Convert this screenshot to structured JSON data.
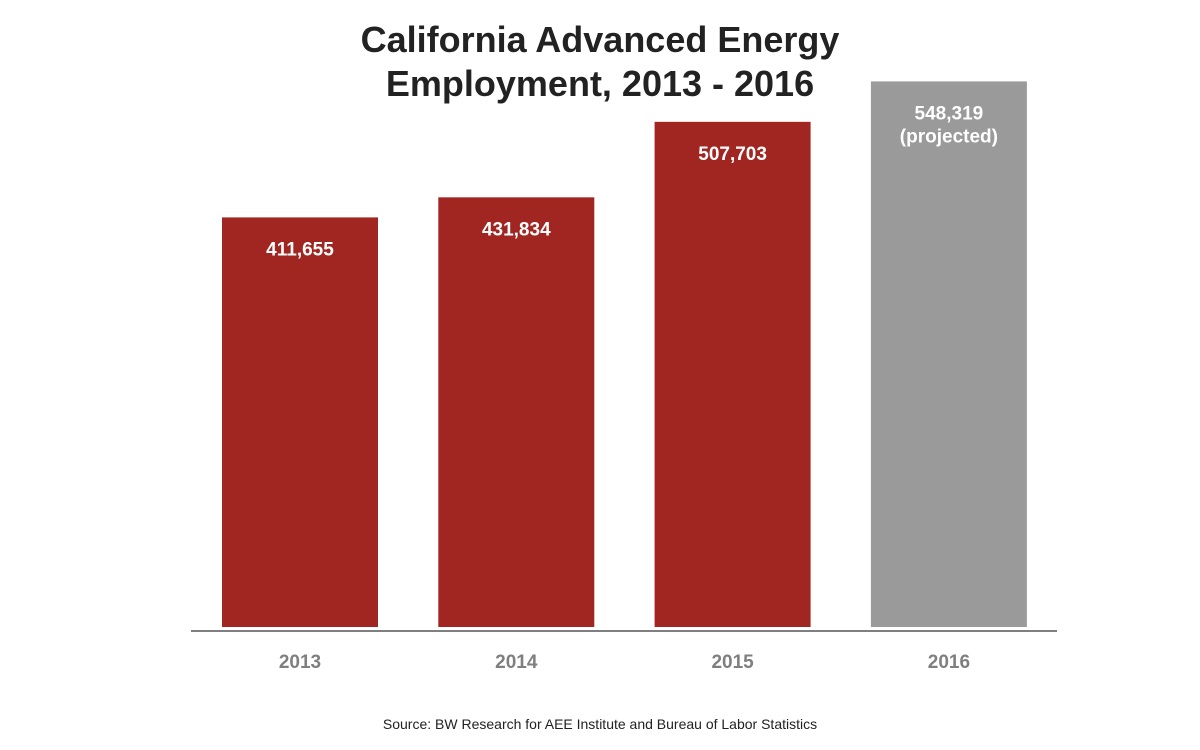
{
  "chart_data": {
    "type": "bar",
    "title_lines": [
      "California Advanced Energy",
      "Employment, 2013 - 2016"
    ],
    "categories": [
      "2013",
      "2014",
      "2015",
      "2016"
    ],
    "values": [
      411655,
      431834,
      507703,
      548319
    ],
    "value_labels": [
      [
        "411,655"
      ],
      [
        "431,834"
      ],
      [
        "507,703"
      ],
      [
        "548,319",
        "(projected)"
      ]
    ],
    "projected": [
      false,
      false,
      false,
      true
    ],
    "xlabel": "",
    "ylabel": "",
    "ylim": [
      0,
      600000
    ],
    "grid": false,
    "legend": "none",
    "colors": {
      "actual": "#a12621",
      "projected": "#9a9a9a",
      "axis": "#7f7f7f",
      "tick_label": "#7f7f7f",
      "value_label": "#ffffff"
    }
  },
  "source_note": "Source: BW Research for AEE Institute and Bureau of Labor Statistics"
}
